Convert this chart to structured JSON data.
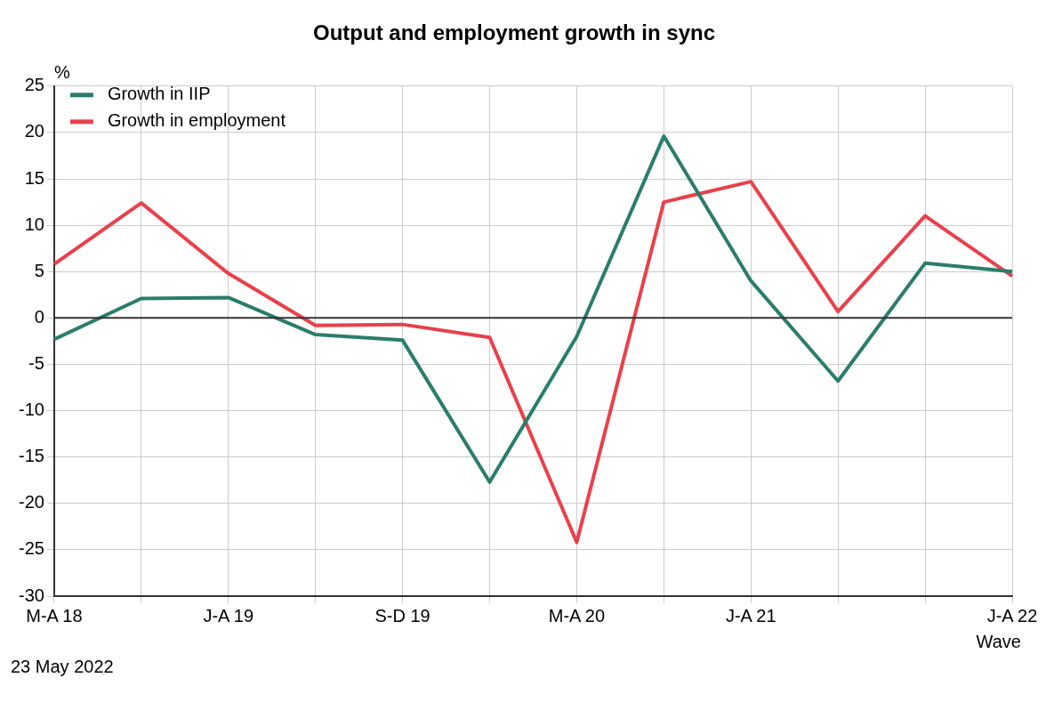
{
  "chart_data": {
    "type": "line",
    "title": "Output and employment growth in sync",
    "xlabel": "Wave",
    "ylabel": "%",
    "categories": [
      "M-A 18",
      null,
      "J-A 19",
      null,
      "S-D 19",
      null,
      "M-A 20",
      null,
      "J-A 21",
      null,
      null,
      "J-A 22"
    ],
    "series": [
      {
        "name": "Growth in IIP",
        "color": "#2a7d6b",
        "values": [
          -2.3,
          2.1,
          2.2,
          -1.8,
          -2.4,
          -17.7,
          -2,
          19.6,
          4,
          -6.8,
          5.9,
          5.0
        ]
      },
      {
        "name": "Growth in employment",
        "color": "#e8414a",
        "values": [
          5.8,
          12.4,
          4.8,
          -0.8,
          -0.7,
          -2.1,
          -24.2,
          12.5,
          14.7,
          0.7,
          11.0,
          4.5
        ]
      }
    ],
    "ylim": [
      -30,
      25
    ],
    "yticks": [
      -30,
      -25,
      -20,
      -15,
      -10,
      -5,
      0,
      5,
      10,
      15,
      20,
      25
    ],
    "ref_lines": [
      {
        "axis": "y",
        "value": 0,
        "color": "#333333"
      }
    ],
    "grid": true,
    "legend": "top left",
    "marker": "none",
    "line_style": "solid",
    "annotations": [
      "23 May 2022"
    ]
  }
}
